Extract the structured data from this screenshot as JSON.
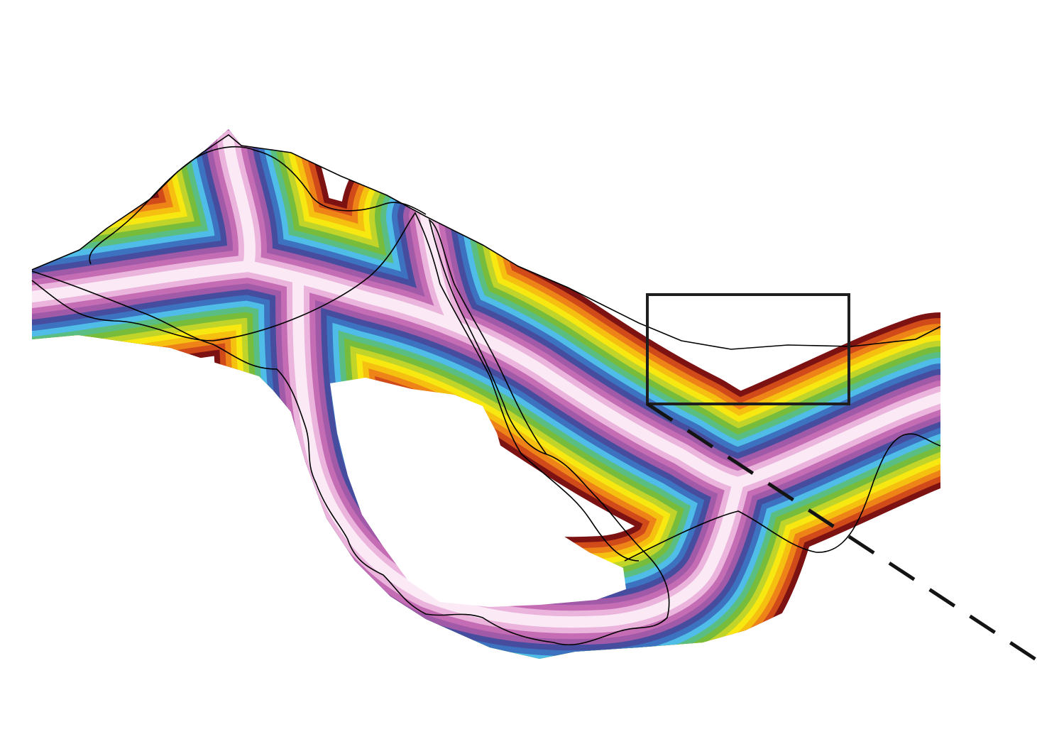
{
  "figure": {
    "background": "#ffffff",
    "colormap": [
      "#fbeaf6",
      "#eab4dc",
      "#c46cb4",
      "#a05aa8",
      "#464c9e",
      "#3c72c0",
      "#50bce8",
      "#5abe82",
      "#78bc3c",
      "#c0d42a",
      "#f8e812",
      "#f6c010",
      "#ee8418",
      "#d04a1a",
      "#7c1212"
    ],
    "outline_color": "#000000",
    "box_color": "#1e1e1e",
    "dash_color": "#141414"
  }
}
